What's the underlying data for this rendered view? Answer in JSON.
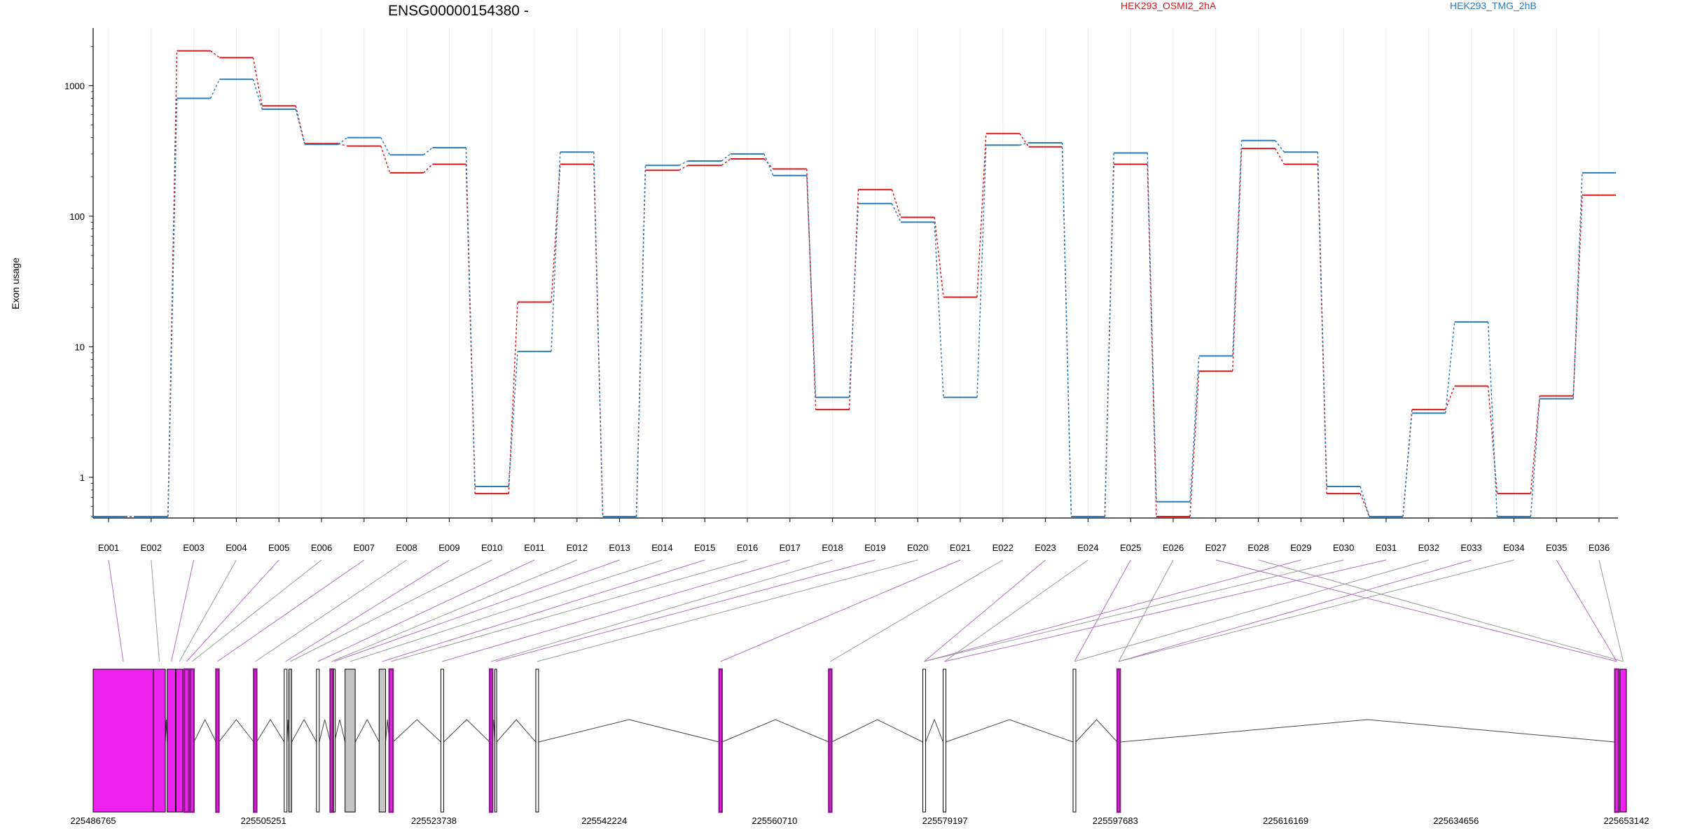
{
  "chart_data": {
    "type": "line",
    "title": "ENSG00000154380 -",
    "ylabel": "Exon usage",
    "xlabel": "",
    "yscale": "log",
    "ylim": [
      0.5,
      2600
    ],
    "yticks": [
      1,
      10,
      100,
      1000
    ],
    "ytick_labels": [
      "1",
      "10",
      "100",
      "1000"
    ],
    "grid": "vertical",
    "legend_placement": "top",
    "categories": [
      "E001",
      "E002",
      "E003",
      "E004",
      "E005",
      "E006",
      "E007",
      "E008",
      "E009",
      "E010",
      "E011",
      "E012",
      "E013",
      "E014",
      "E015",
      "E016",
      "E017",
      "E018",
      "E019",
      "E020",
      "E021",
      "E022",
      "E023",
      "E024",
      "E025",
      "E026",
      "E027",
      "E028",
      "E029",
      "E030",
      "E031",
      "E032",
      "E033",
      "E034",
      "E035",
      "E036"
    ],
    "series": [
      {
        "name": "HEK293_OSMI2_2hA",
        "color": "#d7191c",
        "values": [
          0.5,
          0.5,
          1850,
          1640,
          700,
          360,
          345,
          215,
          250,
          0.75,
          22,
          250,
          0.5,
          225,
          245,
          275,
          230,
          3.3,
          160,
          98,
          24,
          430,
          340,
          0.5,
          250,
          0.5,
          6.5,
          330,
          250,
          0.75,
          0.5,
          3.3,
          5.0,
          0.75,
          4.2,
          145
        ]
      },
      {
        "name": "HEK293_TMG_2hB",
        "color": "#2c7bb6",
        "values": [
          0.5,
          0.5,
          800,
          1120,
          660,
          355,
          400,
          295,
          335,
          0.85,
          9.2,
          310,
          0.5,
          245,
          265,
          300,
          205,
          4.1,
          125,
          90,
          4.1,
          350,
          365,
          0.5,
          305,
          0.65,
          8.5,
          380,
          310,
          0.85,
          0.5,
          3.1,
          15.5,
          0.5,
          4.0,
          215
        ]
      }
    ],
    "genomic_axis": {
      "ticks": [
        "225486765",
        "225505251",
        "225523738",
        "225542224",
        "225560710",
        "225579197",
        "225597683",
        "225616169",
        "225634656",
        "225653142"
      ],
      "start": 225486765,
      "end": 225653142,
      "exon_color": "#ee22ee",
      "highlight_color": "#8b1a8b",
      "intron_color": "#444444",
      "exons": [
        {
          "id": "E001",
          "start": 225486765,
          "end": 225493300,
          "fill": "magenta"
        },
        {
          "id": "E002",
          "start": 225493300,
          "end": 225494600,
          "fill": "magenta"
        },
        {
          "id": "E003",
          "start": 225494800,
          "end": 225495700,
          "fill": "magenta"
        },
        {
          "id": "E004",
          "start": 225495750,
          "end": 225496500,
          "fill": "magenta"
        },
        {
          "id": "E005",
          "start": 225496650,
          "end": 225497150,
          "fill": "magenta"
        },
        {
          "id": "E006",
          "start": 225497300,
          "end": 225497700,
          "fill": "magenta"
        },
        {
          "id": "E007",
          "start": 225500100,
          "end": 225500400,
          "fill": "magenta"
        },
        {
          "id": "E008",
          "start": 225504200,
          "end": 225504500,
          "fill": "magenta"
        },
        {
          "id": "E009",
          "start": 225507500,
          "end": 225507800,
          "fill": "white"
        },
        {
          "id": "E010",
          "start": 225508000,
          "end": 225508300,
          "fill": "gray"
        },
        {
          "id": "E011",
          "start": 225511000,
          "end": 225511300,
          "fill": "white"
        },
        {
          "id": "E012",
          "start": 225512500,
          "end": 225512800,
          "fill": "magenta"
        },
        {
          "id": "E013",
          "start": 225512850,
          "end": 225512950,
          "fill": "white"
        },
        {
          "id": "E014",
          "start": 225514100,
          "end": 225515200,
          "fill": "gray"
        },
        {
          "id": "E015",
          "start": 225517800,
          "end": 225518500,
          "fill": "gray"
        },
        {
          "id": "E016",
          "start": 225518900,
          "end": 225519300,
          "fill": "magenta"
        },
        {
          "id": "E017",
          "start": 225524500,
          "end": 225524800,
          "fill": "white"
        },
        {
          "id": "E018",
          "start": 225529800,
          "end": 225530100,
          "fill": "magenta"
        },
        {
          "id": "E019",
          "start": 225530350,
          "end": 225530550,
          "fill": "white"
        },
        {
          "id": "E020",
          "start": 225534800,
          "end": 225535100,
          "fill": "white"
        },
        {
          "id": "E021",
          "start": 225554700,
          "end": 225555000,
          "fill": "magenta"
        },
        {
          "id": "E022",
          "start": 225566600,
          "end": 225566900,
          "fill": "magenta"
        },
        {
          "id": "E023",
          "start": 225576800,
          "end": 225577100,
          "fill": "white"
        },
        {
          "id": "E024",
          "start": 225579000,
          "end": 225579300,
          "fill": "white"
        },
        {
          "id": "E025",
          "start": 225593100,
          "end": 225593400,
          "fill": "white"
        },
        {
          "id": "E026",
          "start": 225597900,
          "end": 225598200,
          "fill": "magenta"
        },
        {
          "id": "E027",
          "start": 225651900,
          "end": 225652300,
          "fill": "magenta"
        },
        {
          "id": "E028",
          "start": 225652450,
          "end": 225653142,
          "fill": "magenta"
        }
      ]
    }
  }
}
